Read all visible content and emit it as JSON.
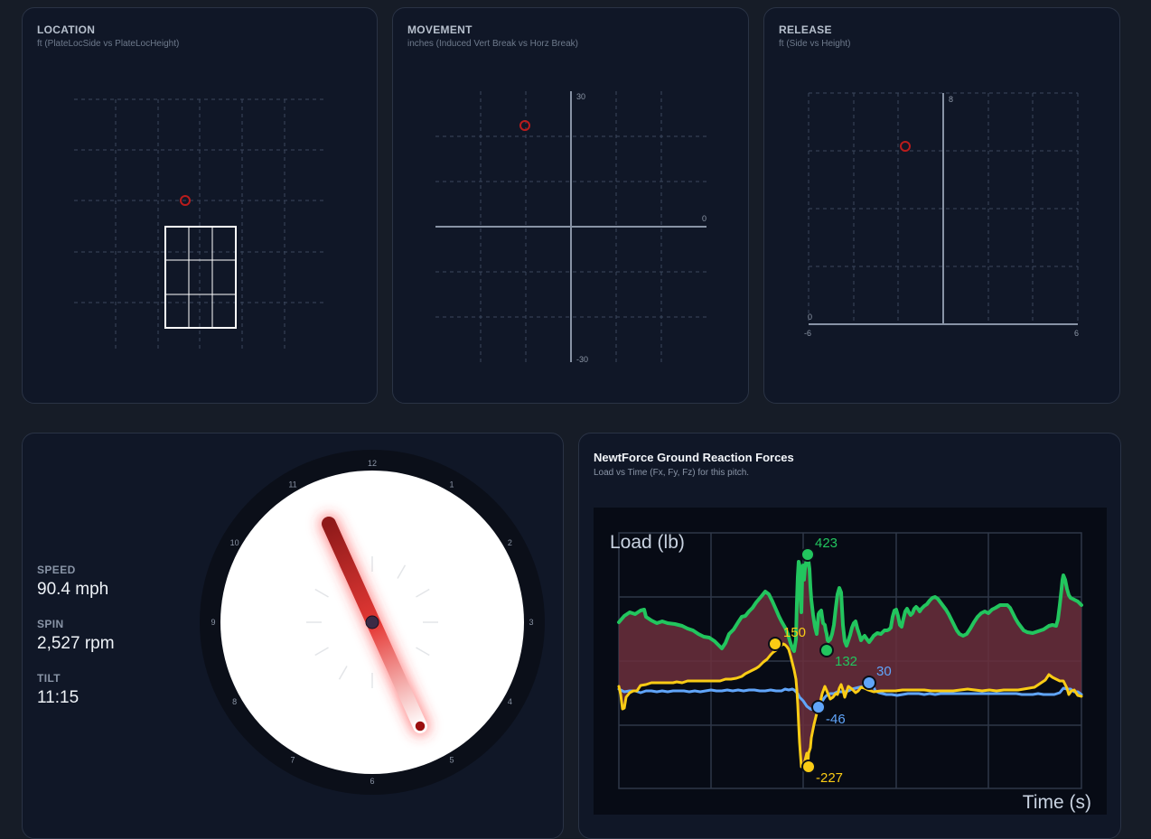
{
  "location": {
    "title": "LOCATION",
    "subtitle": "ft (PlateLocSide vs PlateLocHeight)"
  },
  "movement": {
    "title": "MOVEMENT",
    "subtitle": "inches (Induced Vert Break vs Horz Break)",
    "labels": {
      "y_top": "30",
      "y_bottom": "-30",
      "x_zero": "0"
    }
  },
  "release": {
    "title": "RELEASE",
    "subtitle": "ft (Side vs Height)",
    "labels": {
      "y_top": "8",
      "y_zero": "0",
      "x_left": "-6",
      "x_right": "6"
    }
  },
  "stats": {
    "speed_label": "SPEED",
    "speed_value": "90.4 mph",
    "spin_label": "SPIN",
    "spin_value": "2,527 rpm",
    "tilt_label": "TILT",
    "tilt_value": "11:15"
  },
  "clock": {
    "hours": [
      "12",
      "1",
      "2",
      "3",
      "4",
      "5",
      "6",
      "7",
      "8",
      "9",
      "10",
      "11"
    ],
    "tilt_hours": 11.25
  },
  "grf": {
    "title": "NewtForce Ground Reaction Forces",
    "subtitle": "Load vs Time (Fx, Fy, Fz) for this pitch.",
    "ylabel": "Load (lb)",
    "xlabel": "Time (s)",
    "annotations": {
      "fz_max": "423",
      "fz_min": "132",
      "fy_max": "150",
      "fy_min": "-227",
      "fx_max": "30",
      "fx_min": "-46"
    }
  },
  "colors": {
    "fz": "#22c55e",
    "fy": "#facc15",
    "fx": "#60a5fa",
    "marker": "#c21818",
    "fill": "#6b2f3c"
  }
}
